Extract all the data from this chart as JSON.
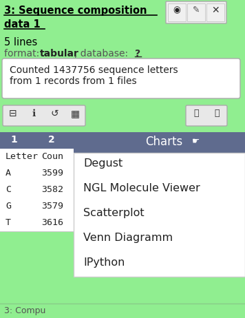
{
  "bg_color": "#90ee90",
  "title_line1": "3: Sequence composition",
  "title_line2": "data 1",
  "lines_text": "5 lines",
  "counted_text": "Counted 1437756 sequence letters\nfrom 1 records from 1 files",
  "table_col1": [
    "Letter",
    "A",
    "C",
    "G",
    "T"
  ],
  "table_col2": [
    "Coun",
    "3599",
    "3582",
    "3579",
    "3616"
  ],
  "dropdown_header": "Charts",
  "dropdown_items": [
    "Degust",
    "NGL Molecule Viewer",
    "Scatterplot",
    "Venn Diagramm",
    "IPython"
  ],
  "dropdown_header_bg": "#5f6b8e",
  "table_header_bg": "#5f6b8e",
  "bottom_text": "3: Compu"
}
